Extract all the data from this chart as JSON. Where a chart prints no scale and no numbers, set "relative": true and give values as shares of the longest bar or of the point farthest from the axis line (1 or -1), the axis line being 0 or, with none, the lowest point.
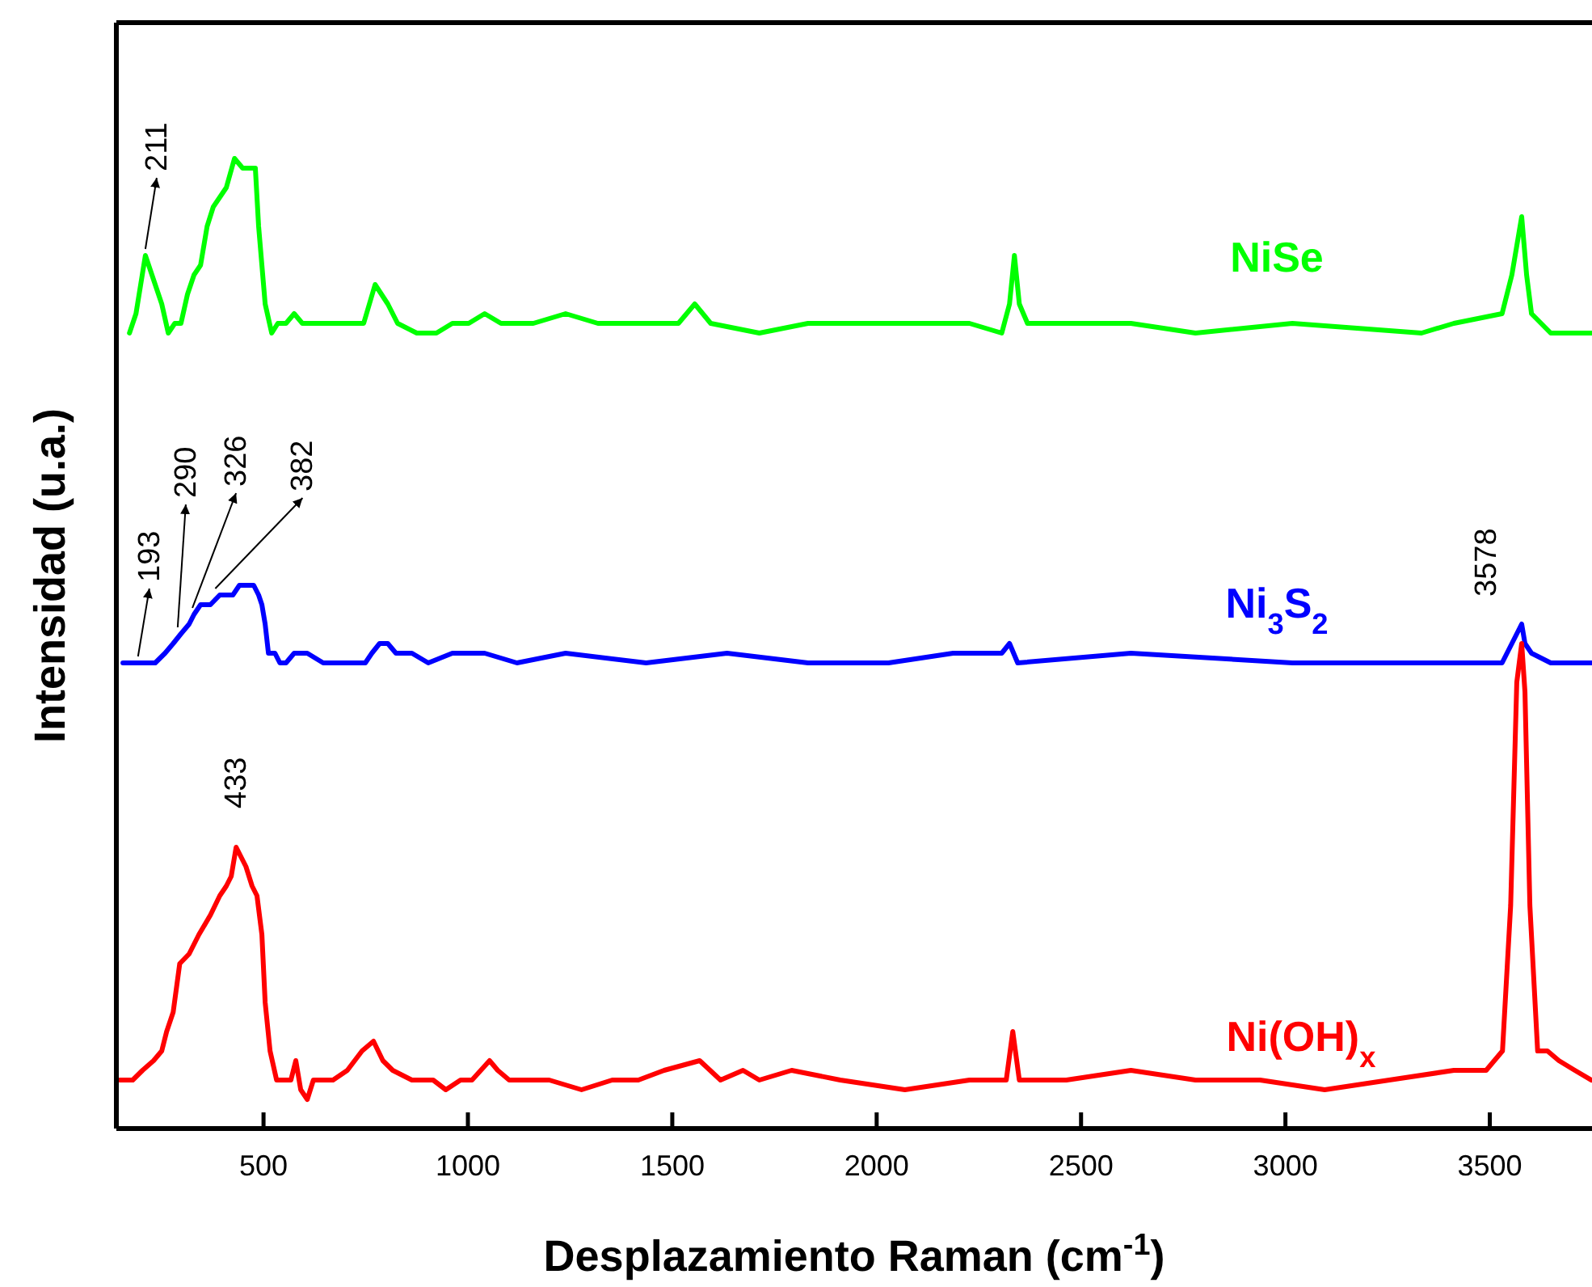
{
  "chart_data": {
    "type": "line",
    "relative": true,
    "xlabel": "Desplazamiento Raman (cm$^{-1}$)",
    "ylabel": "Intensidad (u.a.)",
    "xlim": [
      140,
      3750
    ],
    "xticks": [
      500,
      1000,
      1500,
      2000,
      2500,
      3000,
      3500
    ],
    "grid": false,
    "marker": "none",
    "line_style": "solid",
    "series": [
      {
        "name": "NiSe",
        "color": "#00ff00",
        "x": [
          172,
          188,
          211,
          235,
          251,
          267,
          283,
          298,
          314,
          330,
          346,
          362,
          377,
          393,
          409,
          429,
          449,
          464,
          480,
          488,
          504,
          520,
          535,
          555,
          575,
          595,
          619,
          646,
          686,
          745,
          773,
          804,
          828,
          875,
          923,
          962,
          1002,
          1041,
          1081,
          1160,
          1239,
          1318,
          1436,
          1515,
          1555,
          1594,
          1713,
          1832,
          2069,
          2227,
          2306,
          2325,
          2337,
          2349,
          2369,
          2622,
          2780,
          3017,
          3333,
          3412,
          3530,
          3554,
          3578,
          3590,
          3602,
          3649,
          3748
        ],
        "values": [
          0.82,
          0.84,
          0.9,
          0.87,
          0.85,
          0.82,
          0.83,
          0.83,
          0.86,
          0.88,
          0.89,
          0.93,
          0.95,
          0.96,
          0.97,
          1.0,
          0.99,
          0.99,
          0.99,
          0.93,
          0.85,
          0.82,
          0.83,
          0.83,
          0.84,
          0.83,
          0.83,
          0.83,
          0.83,
          0.83,
          0.87,
          0.85,
          0.83,
          0.82,
          0.82,
          0.83,
          0.83,
          0.84,
          0.83,
          0.83,
          0.84,
          0.83,
          0.83,
          0.83,
          0.85,
          0.83,
          0.82,
          0.83,
          0.83,
          0.83,
          0.82,
          0.85,
          0.9,
          0.85,
          0.83,
          0.83,
          0.82,
          0.83,
          0.82,
          0.83,
          0.84,
          0.88,
          0.94,
          0.88,
          0.84,
          0.82,
          0.82
        ]
      },
      {
        "name": "Ni$_{3}$S$_{2}$",
        "color": "#0000ff",
        "x": [
          156,
          172,
          193,
          212,
          235,
          259,
          279,
          298,
          318,
          330,
          346,
          370,
          393,
          409,
          425,
          441,
          460,
          476,
          488,
          496,
          504,
          512,
          528,
          540,
          555,
          575,
          607,
          646,
          686,
          725,
          749,
          765,
          784,
          804,
          824,
          863,
          903,
          962,
          1041,
          1120,
          1239,
          1436,
          1634,
          1832,
          2029,
          2187,
          2306,
          2325,
          2345,
          2622,
          3017,
          3412,
          3530,
          3554,
          3578,
          3586,
          3602,
          3649,
          3748
        ],
        "values": [
          0.48,
          0.48,
          0.48,
          0.48,
          0.48,
          0.49,
          0.5,
          0.51,
          0.52,
          0.53,
          0.54,
          0.54,
          0.55,
          0.55,
          0.55,
          0.56,
          0.56,
          0.56,
          0.55,
          0.54,
          0.52,
          0.49,
          0.49,
          0.48,
          0.48,
          0.49,
          0.49,
          0.48,
          0.48,
          0.48,
          0.48,
          0.49,
          0.5,
          0.5,
          0.49,
          0.49,
          0.48,
          0.49,
          0.49,
          0.48,
          0.49,
          0.48,
          0.49,
          0.48,
          0.48,
          0.49,
          0.49,
          0.5,
          0.48,
          0.49,
          0.48,
          0.48,
          0.48,
          0.5,
          0.52,
          0.5,
          0.49,
          0.48,
          0.48
        ]
      },
      {
        "name": "Ni(OH)$_{x}$",
        "color": "#ff0000",
        "x": [
          148,
          164,
          180,
          204,
          231,
          251,
          263,
          279,
          295,
          318,
          342,
          370,
          393,
          409,
          421,
          433,
          457,
          472,
          484,
          496,
          504,
          516,
          532,
          551,
          567,
          579,
          591,
          607,
          622,
          646,
          670,
          705,
          741,
          769,
          792,
          816,
          863,
          915,
          946,
          982,
          1010,
          1053,
          1073,
          1101,
          1140,
          1199,
          1278,
          1353,
          1417,
          1480,
          1567,
          1618,
          1673,
          1713,
          1792,
          1911,
          2069,
          2227,
          2317,
          2333,
          2349,
          2464,
          2622,
          2780,
          2938,
          3096,
          3254,
          3412,
          3491,
          3531,
          3551,
          3566,
          3578,
          3586,
          3598,
          3617,
          3641,
          3669,
          3708,
          3748
        ],
        "values": [
          0.05,
          0.05,
          0.05,
          0.06,
          0.07,
          0.08,
          0.1,
          0.12,
          0.17,
          0.18,
          0.2,
          0.22,
          0.24,
          0.25,
          0.26,
          0.29,
          0.27,
          0.25,
          0.24,
          0.2,
          0.13,
          0.08,
          0.05,
          0.05,
          0.05,
          0.07,
          0.04,
          0.03,
          0.05,
          0.05,
          0.05,
          0.06,
          0.08,
          0.09,
          0.07,
          0.06,
          0.05,
          0.05,
          0.04,
          0.05,
          0.05,
          0.07,
          0.06,
          0.05,
          0.05,
          0.05,
          0.04,
          0.05,
          0.05,
          0.06,
          0.07,
          0.05,
          0.06,
          0.05,
          0.06,
          0.05,
          0.04,
          0.05,
          0.05,
          0.1,
          0.05,
          0.05,
          0.06,
          0.05,
          0.05,
          0.04,
          0.05,
          0.06,
          0.06,
          0.08,
          0.23,
          0.46,
          0.5,
          0.45,
          0.23,
          0.08,
          0.08,
          0.07,
          0.06,
          0.05
        ]
      }
    ],
    "annotations": [
      {
        "text": "211",
        "x": 211,
        "y": 0.9
      },
      {
        "text": "193",
        "x": 193,
        "y": 0.48
      },
      {
        "text": "290",
        "x": 290,
        "y": 0.51
      },
      {
        "text": "326",
        "x": 326,
        "y": 0.53
      },
      {
        "text": "382",
        "x": 382,
        "y": 0.55
      },
      {
        "text": "433",
        "x": 433,
        "y": 0.29
      },
      {
        "text": "3578",
        "x": 3578,
        "y": 0.5
      }
    ]
  }
}
